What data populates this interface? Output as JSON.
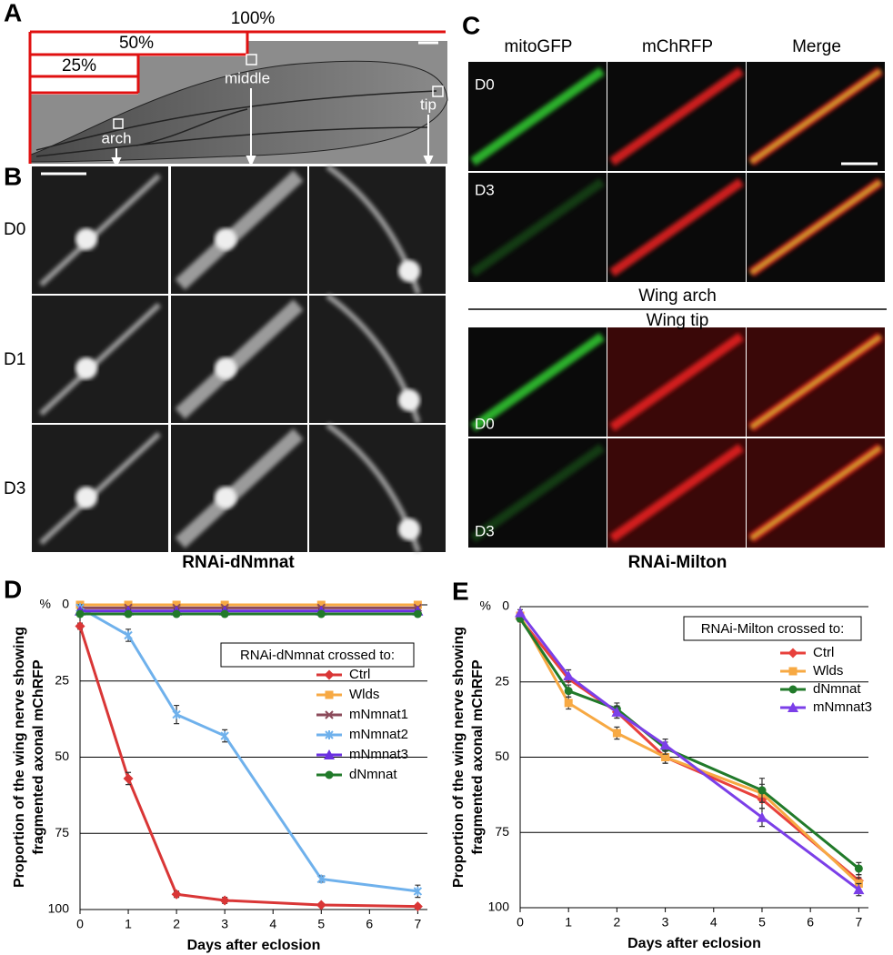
{
  "panel_a": {
    "letter": "A",
    "labels": [
      "100%",
      "50%",
      "25%"
    ],
    "points": [
      "arch",
      "middle",
      "tip"
    ]
  },
  "panel_b": {
    "letter": "B",
    "rows": [
      "D0",
      "D1",
      "D3"
    ],
    "caption": "RNAi-dNmnat"
  },
  "panel_c": {
    "letter": "C",
    "columns": [
      "mitoGFP",
      "mChRFP",
      "Merge"
    ],
    "sections": [
      "Wing arch",
      "Wing tip"
    ],
    "arch_rows": [
      "D0",
      "D3"
    ],
    "tip_rows": [
      "D0",
      "D3"
    ],
    "caption": "RNAi-Milton"
  },
  "chart_data": [
    {
      "type": "line",
      "letter": "D",
      "unit_label": "%",
      "xlabel": "Days after eclosion",
      "ylabel": [
        "Proportion of the wing nerve showing",
        "fragmented axonal mChRFP"
      ],
      "legend_title": "RNAi-dNmnat crossed to:",
      "legend": "right",
      "grid": true,
      "y_inverted": true,
      "x": [
        0,
        1,
        2,
        3,
        5,
        7
      ],
      "xlim": [
        0,
        7.2
      ],
      "xticks": [
        0,
        1,
        2,
        3,
        4,
        5,
        6,
        7
      ],
      "ylim": [
        0,
        100
      ],
      "yticks": [
        0,
        25,
        50,
        75,
        100
      ],
      "series": [
        {
          "name": "Ctrl",
          "color": "#d93636",
          "marker": "diamond",
          "values": [
            7,
            57,
            95,
            97,
            98.5,
            99
          ],
          "errors": [
            1,
            2,
            1,
            1,
            0.5,
            0.5
          ]
        },
        {
          "name": "Wlds",
          "color": "#f7a943",
          "marker": "square",
          "values": [
            0,
            0,
            0,
            0,
            0,
            0
          ],
          "errors": [
            0.5,
            0.5,
            0.5,
            0.5,
            0.5,
            0.5
          ]
        },
        {
          "name": "mNmnat1",
          "color": "#8b4a5a",
          "marker": "x",
          "values": [
            1,
            1,
            1,
            1,
            1,
            1
          ],
          "errors": [
            0.5,
            0.5,
            0.5,
            0.5,
            0.5,
            0.5
          ]
        },
        {
          "name": "mNmnat2",
          "color": "#6fb1ec",
          "marker": "star",
          "values": [
            1,
            10,
            36,
            43,
            90,
            94
          ],
          "errors": [
            1,
            2,
            3,
            2,
            1,
            2
          ]
        },
        {
          "name": "mNmnat3",
          "color": "#6a2fe0",
          "marker": "triangle",
          "values": [
            2,
            2,
            2,
            2,
            2,
            2
          ],
          "errors": [
            0.5,
            0.5,
            0.5,
            0.5,
            0.5,
            0.5
          ]
        },
        {
          "name": "dNmnat",
          "color": "#217a2a",
          "marker": "circle",
          "values": [
            3,
            3,
            3,
            3,
            3,
            3
          ],
          "errors": [
            0.5,
            0.5,
            0.5,
            0.5,
            0.5,
            0.5
          ]
        }
      ]
    },
    {
      "type": "line",
      "letter": "E",
      "unit_label": "%",
      "xlabel": "Days after eclosion",
      "ylabel": [
        "Proportion of the wing nerve showing",
        "fragmented axonal mChRFP"
      ],
      "legend_title": "RNAi-Milton crossed to:",
      "legend": "top-right",
      "grid": true,
      "y_inverted": true,
      "x": [
        0,
        1,
        2,
        3,
        5,
        7
      ],
      "xlim": [
        0,
        7.2
      ],
      "xticks": [
        0,
        1,
        2,
        3,
        4,
        5,
        6,
        7
      ],
      "ylim": [
        0,
        100
      ],
      "yticks": [
        0,
        25,
        50,
        75,
        100
      ],
      "series": [
        {
          "name": "Ctrl",
          "color": "#e8413c",
          "marker": "diamond",
          "values": [
            4,
            24,
            35,
            50,
            64,
            91
          ],
          "errors": [
            1,
            1,
            2,
            2,
            3,
            2
          ]
        },
        {
          "name": "Wlds",
          "color": "#f7a943",
          "marker": "square",
          "values": [
            3,
            32,
            42,
            50,
            62,
            92
          ],
          "errors": [
            1,
            2,
            2,
            2,
            3,
            2
          ]
        },
        {
          "name": "dNmnat",
          "color": "#217a2a",
          "marker": "circle",
          "values": [
            4,
            28,
            34,
            47,
            61,
            87
          ],
          "errors": [
            1,
            2,
            2,
            2,
            4,
            2
          ]
        },
        {
          "name": "mNmnat3",
          "color": "#7b3fe8",
          "marker": "triangle",
          "values": [
            2,
            23,
            35,
            46,
            70,
            94
          ],
          "errors": [
            1,
            2,
            2,
            2,
            3,
            2
          ]
        }
      ]
    }
  ]
}
